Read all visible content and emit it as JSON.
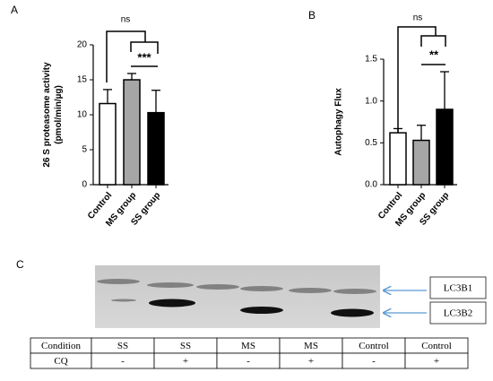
{
  "chart_data": [
    {
      "type": "bar",
      "panel": "A",
      "ylabel": [
        "26 S proteasome activity",
        "(pmol/min/µg)"
      ],
      "categories": [
        "Control",
        "MS group",
        "SS group"
      ],
      "values": [
        11.6,
        15.0,
        10.3
      ],
      "errors": [
        2.0,
        0.9,
        3.2
      ],
      "colors": [
        "#ffffff",
        "#a6a6a6",
        "#000000"
      ],
      "ylim": [
        0,
        20
      ],
      "yticks": [
        0,
        5,
        10,
        15,
        20
      ],
      "annotations": [
        "ns",
        "***"
      ]
    },
    {
      "type": "bar",
      "panel": "B",
      "ylabel": [
        "Autophagy Flux"
      ],
      "categories": [
        "Control",
        "MS group",
        "SS group"
      ],
      "values": [
        0.62,
        0.53,
        0.9
      ],
      "errors": [
        0.05,
        0.18,
        0.45
      ],
      "colors": [
        "#ffffff",
        "#a6a6a6",
        "#000000"
      ],
      "ylim": [
        0,
        1.5
      ],
      "yticks": [
        {
          "value": 0,
          "label": "0.0"
        },
        {
          "value": 0.5,
          "label": "0.5"
        },
        {
          "value": 1,
          "label": "1.0"
        },
        {
          "value": 1.5,
          "label": "1.5"
        }
      ],
      "annotations": [
        "ns",
        "**"
      ]
    }
  ],
  "panel_c": {
    "panel": "C",
    "bands": [
      "LC3B1",
      "LC3B2"
    ],
    "table": {
      "rows": [
        [
          "Condition",
          "SS",
          "SS",
          "MS",
          "MS",
          "Control",
          "Control"
        ],
        [
          "CQ",
          "-",
          "+",
          "-",
          "+",
          "-",
          "+"
        ]
      ]
    }
  }
}
